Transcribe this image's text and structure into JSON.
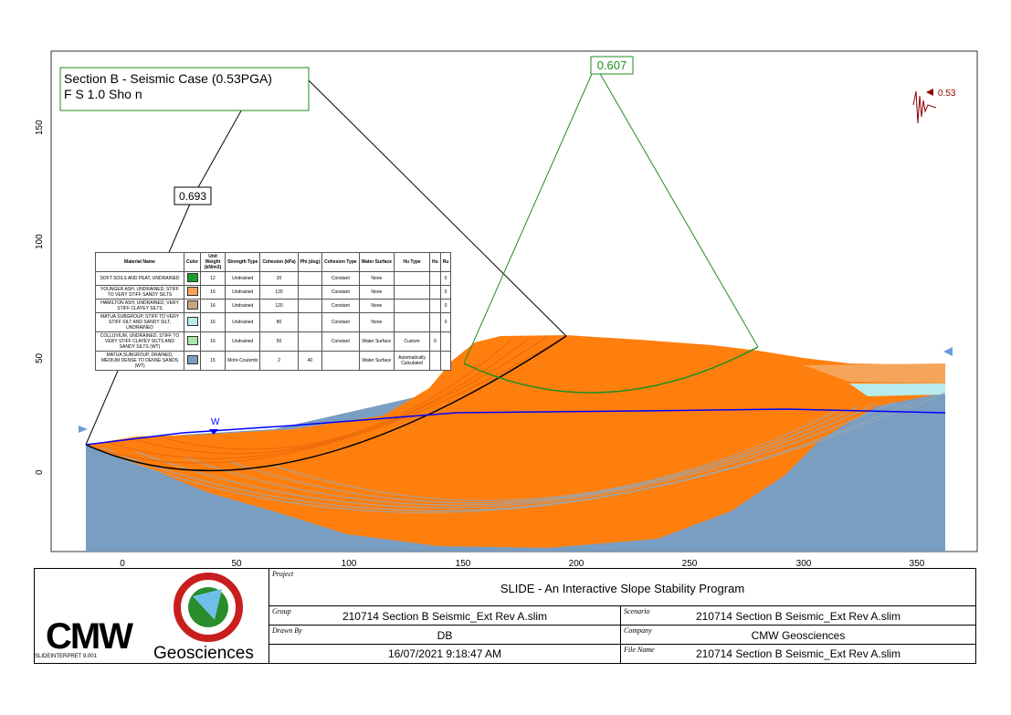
{
  "annotation_box": {
    "line1": "Section B - Seismic Case (0.53PGA)",
    "line2": "F  S   1.0 Sho   n"
  },
  "labels": {
    "fs_green": "0.607",
    "fs_black": "0.693",
    "seismic_coef": "0.53",
    "water_marker": "W"
  },
  "axes": {
    "x_ticks": [
      "0",
      "50",
      "100",
      "150",
      "200",
      "250",
      "300",
      "350"
    ],
    "y_ticks": [
      "0",
      "50",
      "100",
      "150"
    ]
  },
  "materials": {
    "headers": [
      "Material Name",
      "Color",
      "Unit Weight (kN/m3)",
      "Strength Type",
      "Cohesion (kPa)",
      "Phi (deg)",
      "Cohesion Type",
      "Water Surface",
      "Hu Type",
      "Hu",
      "Ru"
    ],
    "rows": [
      {
        "name": "SOFT SOILS AND PEAT, UNDRAINED",
        "color": "#1a9c2a",
        "uw": "12",
        "type": "Undrained",
        "c": "20",
        "phi": "",
        "ctype": "Constant",
        "ws": "None",
        "hutype": "",
        "hu": "",
        "ru": "0"
      },
      {
        "name": "YOUNGER ASH, UNDRAINED, STIFF TO VERY STIFF SANDY SILTS",
        "color": "#f5a55a",
        "uw": "16",
        "type": "Undrained",
        "c": "120",
        "phi": "",
        "ctype": "Constant",
        "ws": "None",
        "hutype": "",
        "hu": "",
        "ru": "0"
      },
      {
        "name": "HAMILTON ASH, UNDRAINED, VERY STIFF CLAYEY SILTS",
        "color": "#c9a77e",
        "uw": "16",
        "type": "Undrained",
        "c": "120",
        "phi": "",
        "ctype": "Constant",
        "ws": "None",
        "hutype": "",
        "hu": "",
        "ru": "0"
      },
      {
        "name": "MATUA SUBGROUP, STIFF TO VERY STIFF SILT AND SANDY SILT, UNDRAINED",
        "color": "#b8ecec",
        "uw": "16",
        "type": "Undrained",
        "c": "80",
        "phi": "",
        "ctype": "Constant",
        "ws": "None",
        "hutype": "",
        "hu": "",
        "ru": "0"
      },
      {
        "name": "COLLUVIUM, UNDRAINED, STIFF TO VERY STIFF CLAYEY SILTS AND SANDY SILTS (WT)",
        "color": "#a6e8a6",
        "uw": "16",
        "type": "Undrained",
        "c": "50",
        "phi": "",
        "ctype": "Constant",
        "ws": "Water Surface",
        "hutype": "Custom",
        "hu": "0",
        "ru": ""
      },
      {
        "name": "MATUA SUBGROUP, DRAINED, MEDIUM DENSE TO DENSE SANDS (WT)",
        "color": "#7a9dc2",
        "uw": "15",
        "type": "Mohr-Coulomb",
        "c": "2",
        "phi": "40",
        "ctype": "",
        "ws": "Water Surface",
        "hutype": "Automatically Calculated",
        "hu": "",
        "ru": ""
      }
    ]
  },
  "title_block": {
    "project_label": "Project",
    "project": "SLIDE - An Interactive Slope Stability Program",
    "group_label": "Group",
    "group": "210714 Section B Seismic_Ext Rev A.slim",
    "scenario_label": "Scenario",
    "scenario": "210714 Section B Seismic_Ext Rev A.slim",
    "drawn_label": "Drawn By",
    "drawn": "DB",
    "company_label": "Company",
    "company": "CMW Geosciences",
    "date": "16/07/2021 9:18:47 AM",
    "file_label": "File Name",
    "file": "210714 Section B Seismic_Ext Rev A.slim",
    "logo_main": "CMW",
    "logo_sub": "Geosciences",
    "version": "SLIDEINTERPRET 9.001"
  },
  "colors": {
    "orange": "#ff7f0e",
    "base": "#7a9dc2",
    "green_surface": "#1e8f1e",
    "water": "#0000ff",
    "seismic": "#8b0000"
  }
}
